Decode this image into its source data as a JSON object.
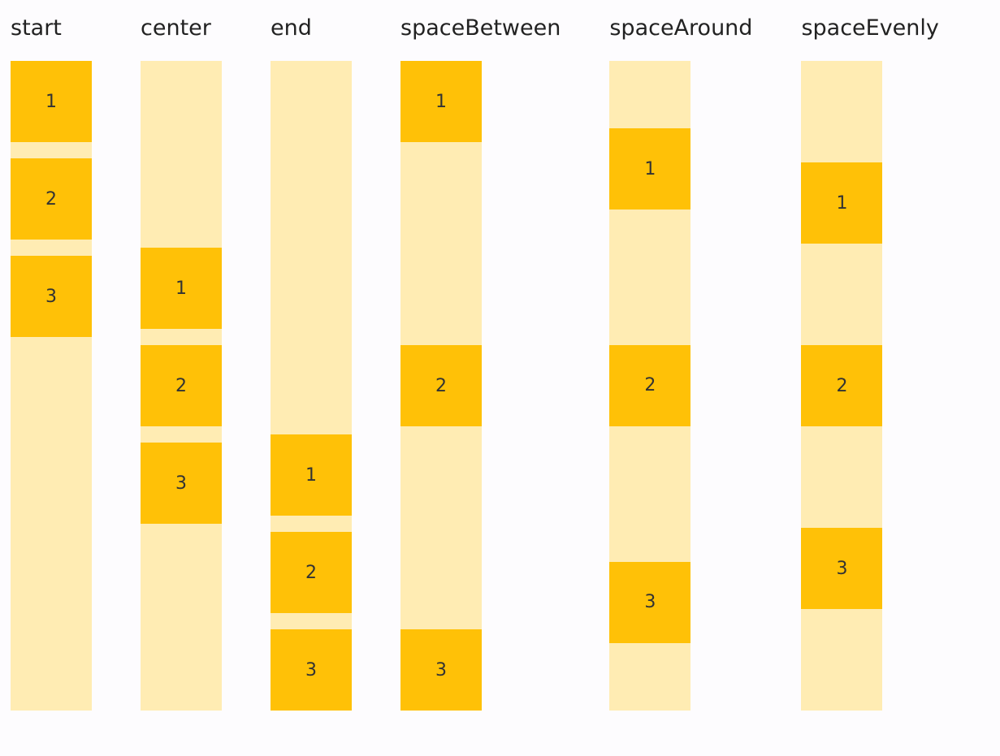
{
  "columns": [
    {
      "label": "start",
      "items": [
        "1",
        "2",
        "3"
      ]
    },
    {
      "label": "center",
      "items": [
        "1",
        "2",
        "3"
      ]
    },
    {
      "label": "end",
      "items": [
        "1",
        "2",
        "3"
      ]
    },
    {
      "label": "spaceBetween",
      "items": [
        "1",
        "2",
        "3"
      ]
    },
    {
      "label": "spaceAround",
      "items": [
        "1",
        "2",
        "3"
      ]
    },
    {
      "label": "spaceEvenly",
      "items": [
        "1",
        "2",
        "3"
      ]
    }
  ]
}
